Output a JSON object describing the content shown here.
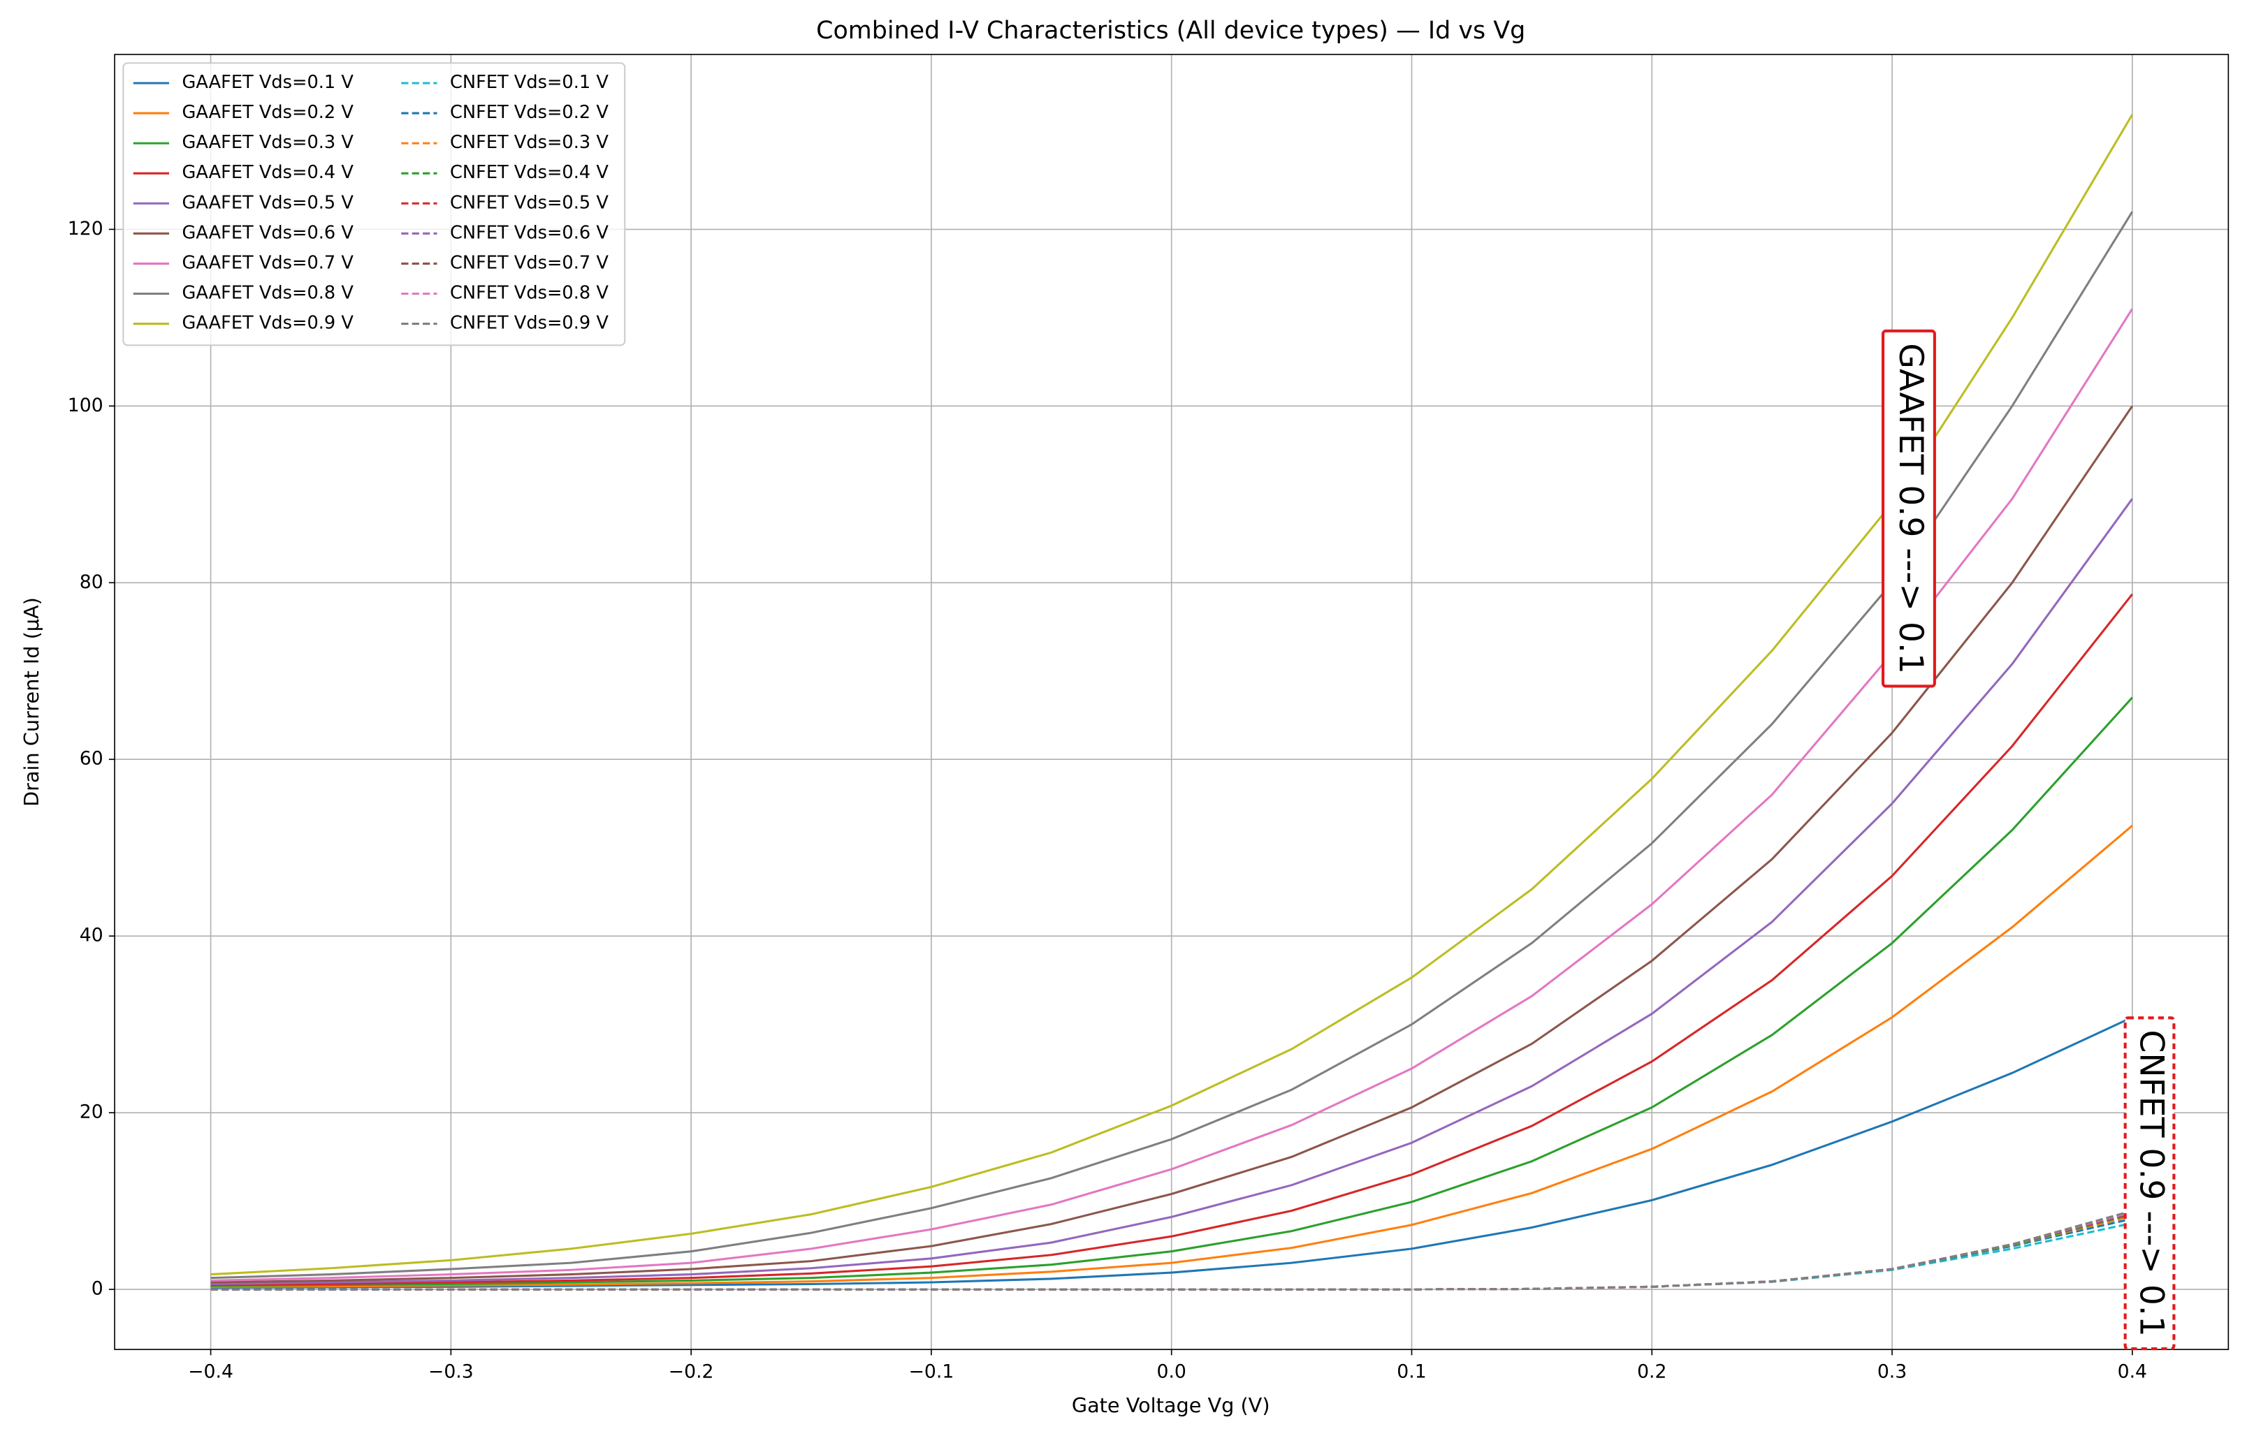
{
  "chart_data": {
    "type": "line",
    "title": "Combined I-V Characteristics (All device types) — Id vs Vg",
    "xlabel": "Gate Voltage Vg (V)",
    "ylabel": "Drain Current Id (µA)",
    "x": [
      -0.4,
      -0.35,
      -0.3,
      -0.25,
      -0.2,
      -0.15,
      -0.1,
      -0.05,
      0,
      0.05,
      0.1,
      0.15,
      0.2,
      0.25,
      0.3,
      0.35,
      0.4
    ],
    "xlim": [
      -0.44,
      0.44
    ],
    "xticks": [
      {
        "value": -0.4,
        "label": "−0.4"
      },
      {
        "value": -0.3,
        "label": "−0.3"
      },
      {
        "value": -0.2,
        "label": "−0.2"
      },
      {
        "value": -0.1,
        "label": "−0.1"
      },
      {
        "value": 0,
        "label": "0.0"
      },
      0.1,
      0.2,
      0.3,
      0.4
    ],
    "ylim": [
      -6.8,
      139.8
    ],
    "yticks": [
      0,
      20,
      40,
      60,
      80,
      100,
      120
    ],
    "grid": true,
    "legend": "upper left",
    "series": [
      {
        "name": "GAAFET Vds=0.1 V",
        "color": "#1f77b4",
        "style": "solid",
        "values": [
          0.2,
          0.25,
          0.3,
          0.4,
          0.5,
          0.6,
          0.8,
          1.2,
          1.9,
          3,
          4.6,
          7,
          10.1,
          14.1,
          19,
          24.5,
          30.8
        ]
      },
      {
        "name": "GAAFET Vds=0.2 V",
        "color": "#ff7f0e",
        "style": "solid",
        "values": [
          0.3,
          0.35,
          0.45,
          0.55,
          0.7,
          0.9,
          1.3,
          2,
          3,
          4.7,
          7.3,
          10.9,
          15.9,
          22.4,
          30.8,
          41,
          52.5
        ]
      },
      {
        "name": "GAAFET Vds=0.3 V",
        "color": "#2ca02c",
        "style": "solid",
        "values": [
          0.4,
          0.5,
          0.6,
          0.8,
          1.0,
          1.3,
          1.9,
          2.8,
          4.3,
          6.6,
          9.9,
          14.5,
          20.6,
          28.8,
          39.2,
          52,
          67
        ]
      },
      {
        "name": "GAAFET Vds=0.4 V",
        "color": "#d62728",
        "style": "solid",
        "values": [
          0.5,
          0.6,
          0.8,
          1.0,
          1.3,
          1.8,
          2.6,
          3.9,
          6.0,
          8.9,
          13,
          18.5,
          25.8,
          35,
          46.8,
          61.5,
          78.7
        ]
      },
      {
        "name": "GAAFET Vds=0.5 V",
        "color": "#9467bd",
        "style": "solid",
        "values": [
          0.6,
          0.8,
          1.0,
          1.3,
          1.7,
          2.4,
          3.5,
          5.3,
          8.2,
          11.8,
          16.6,
          23,
          31.2,
          41.6,
          55,
          70.8,
          89.5
        ]
      },
      {
        "name": "GAAFET Vds=0.6 V",
        "color": "#8c564b",
        "style": "solid",
        "values": [
          0.8,
          1.0,
          1.3,
          1.7,
          2.3,
          3.2,
          4.9,
          7.4,
          10.8,
          15,
          20.6,
          27.8,
          37.2,
          48.7,
          63,
          80,
          100
        ]
      },
      {
        "name": "GAAFET Vds=0.7 V",
        "color": "#e377c2",
        "style": "solid",
        "values": [
          1.0,
          1.3,
          1.7,
          2.2,
          3.0,
          4.6,
          6.8,
          9.6,
          13.6,
          18.6,
          25,
          33.2,
          43.6,
          56,
          72,
          89.5,
          111
        ]
      },
      {
        "name": "GAAFET Vds=0.8 V",
        "color": "#7f7f7f",
        "style": "solid",
        "values": [
          1.3,
          1.7,
          2.3,
          3.0,
          4.3,
          6.4,
          9.2,
          12.6,
          17,
          22.6,
          30,
          39.2,
          50.5,
          64,
          80,
          100,
          122
        ]
      },
      {
        "name": "GAAFET Vds=0.9 V",
        "color": "#bcbd22",
        "style": "solid",
        "values": [
          1.7,
          2.4,
          3.3,
          4.6,
          6.3,
          8.5,
          11.6,
          15.5,
          20.8,
          27.2,
          35.3,
          45.3,
          57.8,
          72.3,
          89,
          110,
          133
        ]
      },
      {
        "name": "CNFET Vds=0.1 V",
        "color": "#17becf",
        "style": "dashed",
        "values": [
          0,
          0,
          0,
          0,
          0,
          0,
          0,
          0,
          0,
          0,
          0,
          0.05,
          0.3,
          0.85,
          2.2,
          4.6,
          7.5
        ]
      },
      {
        "name": "CNFET Vds=0.2 V",
        "color": "#1f77b4",
        "style": "dashed",
        "values": [
          0,
          0,
          0,
          0,
          0,
          0,
          0,
          0,
          0,
          0,
          0,
          0.05,
          0.3,
          0.9,
          2.3,
          4.9,
          8.0
        ]
      },
      {
        "name": "CNFET Vds=0.3 V",
        "color": "#ff7f0e",
        "style": "dashed",
        "values": [
          0,
          0,
          0,
          0,
          0,
          0,
          0,
          0,
          0,
          0,
          0,
          0.05,
          0.3,
          0.9,
          2.3,
          5.0,
          8.3
        ]
      },
      {
        "name": "CNFET Vds=0.4 V",
        "color": "#2ca02c",
        "style": "dashed",
        "values": [
          0,
          0,
          0,
          0,
          0,
          0,
          0,
          0,
          0,
          0,
          0,
          0.05,
          0.3,
          0.9,
          2.3,
          5.0,
          8.5
        ]
      },
      {
        "name": "CNFET Vds=0.5 V",
        "color": "#d62728",
        "style": "dashed",
        "values": [
          0,
          0,
          0,
          0,
          0,
          0,
          0,
          0,
          0,
          0,
          0,
          0.05,
          0.3,
          0.9,
          2.3,
          5.1,
          8.6
        ]
      },
      {
        "name": "CNFET Vds=0.6 V",
        "color": "#9467bd",
        "style": "dashed",
        "values": [
          0,
          0,
          0,
          0,
          0,
          0,
          0,
          0,
          0,
          0,
          0,
          0.05,
          0.3,
          0.9,
          2.3,
          5.1,
          8.7
        ]
      },
      {
        "name": "CNFET Vds=0.7 V",
        "color": "#8c564b",
        "style": "dashed",
        "values": [
          0,
          0,
          0,
          0,
          0,
          0,
          0,
          0,
          0,
          0,
          0,
          0.05,
          0.3,
          0.9,
          2.3,
          5.1,
          8.8
        ]
      },
      {
        "name": "CNFET Vds=0.8 V",
        "color": "#e377c2",
        "style": "dashed",
        "values": [
          0,
          0,
          0,
          0,
          0,
          0,
          0,
          0,
          0,
          0,
          0,
          0.05,
          0.3,
          0.9,
          2.3,
          5.1,
          8.8
        ]
      },
      {
        "name": "CNFET Vds=0.9 V",
        "color": "#7f7f7f",
        "style": "dashed",
        "values": [
          0,
          0,
          0,
          0,
          0,
          0,
          0,
          0,
          0,
          0,
          0,
          0.05,
          0.3,
          0.9,
          2.3,
          5.1,
          8.9
        ]
      }
    ],
    "annotations": [
      {
        "text": "GAAFET 0.9 ---> 0.1",
        "border": "solid"
      },
      {
        "text": "CNFET 0.9 ---> 0.1",
        "border": "dashed"
      }
    ]
  }
}
